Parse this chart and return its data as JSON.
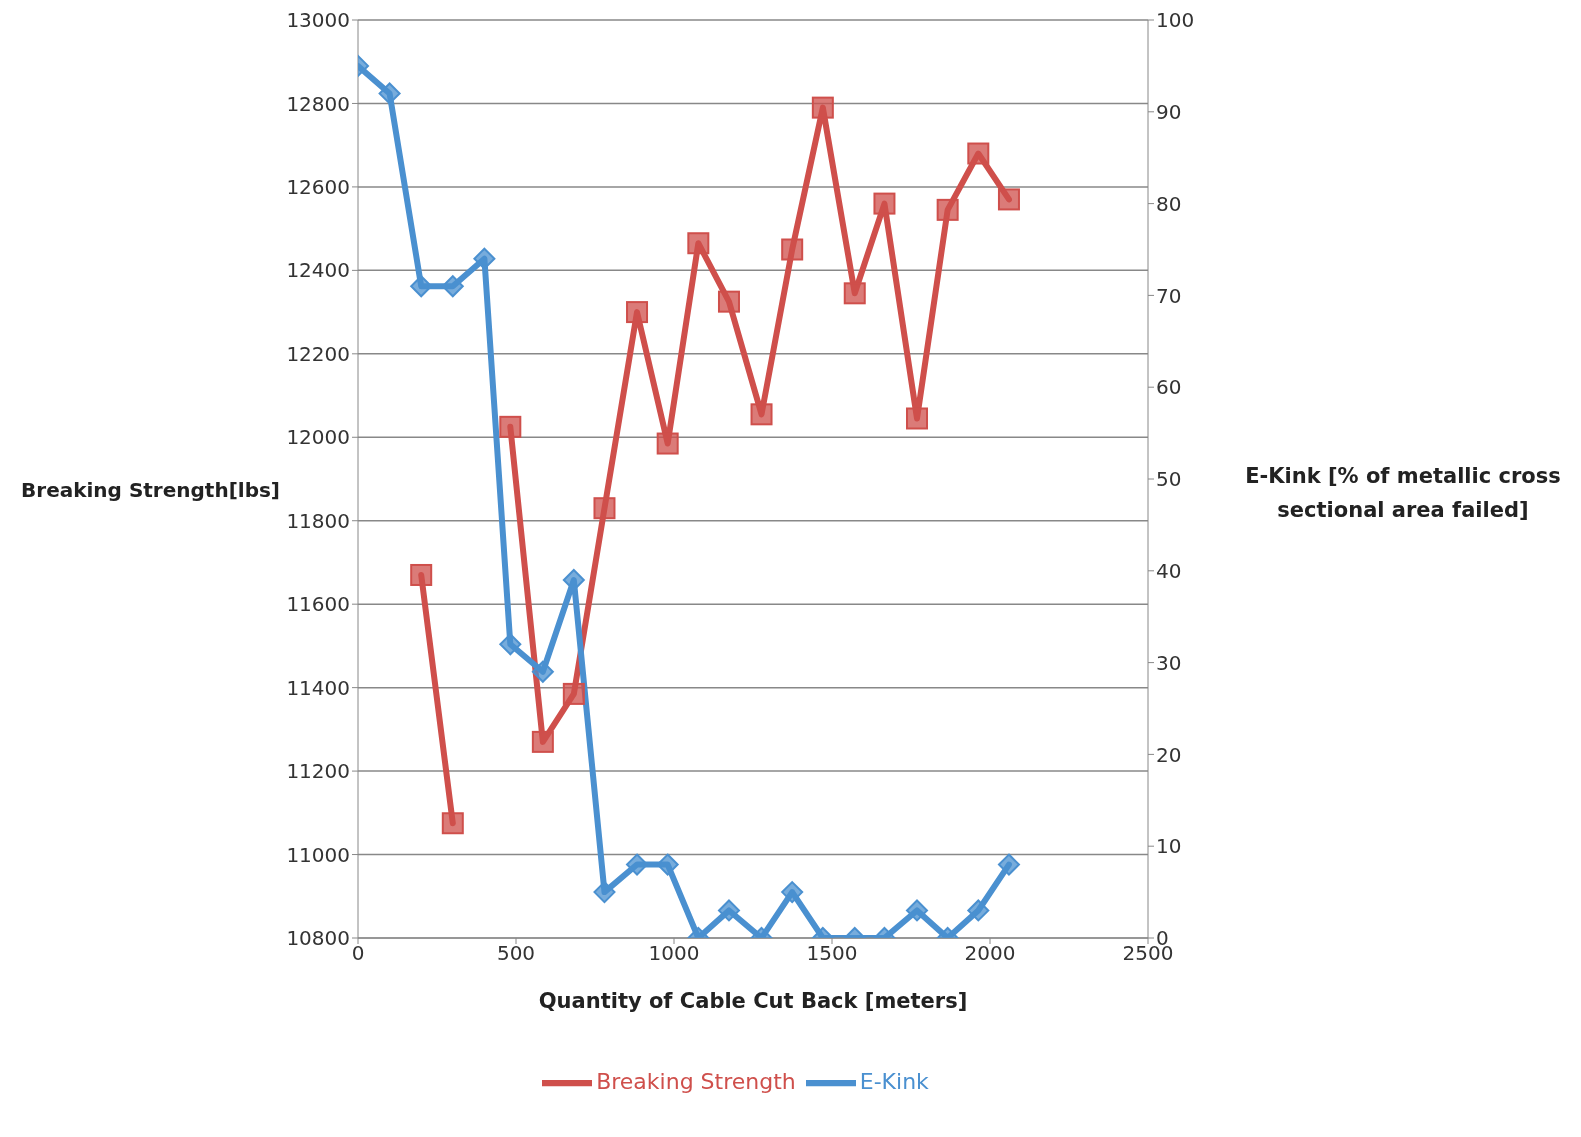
{
  "chart_data": {
    "type": "line",
    "xlabel": "Quantity of Cable Cut Back [meters]",
    "ylabel": "Breaking Strength[lbs]",
    "y2label": "E-Kink [% of metallic cross sectional area failed]",
    "x": [
      0,
      100,
      200,
      300,
      400,
      482,
      585,
      683,
      780,
      883,
      980,
      1077,
      1174,
      1277,
      1374,
      1471,
      1572,
      1666,
      1769,
      1866,
      1963,
      2060
    ],
    "series": [
      {
        "name": "Breaking Strength",
        "color": "#cf4f4b",
        "marker": "square",
        "values": [
          null,
          null,
          11670,
          11075,
          null,
          12025,
          11270,
          11385,
          11830,
          12300,
          11985,
          12465,
          12325,
          12055,
          12450,
          12790,
          12345,
          12560,
          12045,
          12545,
          12680,
          12570
        ]
      },
      {
        "name": "E-Kink",
        "color": "#4a90d0",
        "marker": "diamond",
        "axis": "y2",
        "values": [
          95,
          92,
          71,
          71,
          74,
          32,
          29,
          39,
          5,
          8,
          8,
          0,
          3,
          0,
          5,
          0,
          0,
          0,
          3,
          0,
          3,
          8
        ]
      }
    ],
    "xlim": [
      0,
      2500
    ],
    "xticks": [
      0,
      500,
      1000,
      1500,
      2000,
      2500
    ],
    "ylim": [
      10800,
      13000
    ],
    "yticks": [
      10800,
      11000,
      11200,
      11400,
      11600,
      11800,
      12000,
      12200,
      12400,
      12600,
      12800,
      13000
    ],
    "y2lim": [
      0,
      100
    ],
    "y2ticks": [
      0,
      10,
      20,
      30,
      40,
      50,
      60,
      70,
      80,
      90,
      100
    ],
    "grid": "y",
    "legend": "bottom",
    "line_style": "solid"
  }
}
